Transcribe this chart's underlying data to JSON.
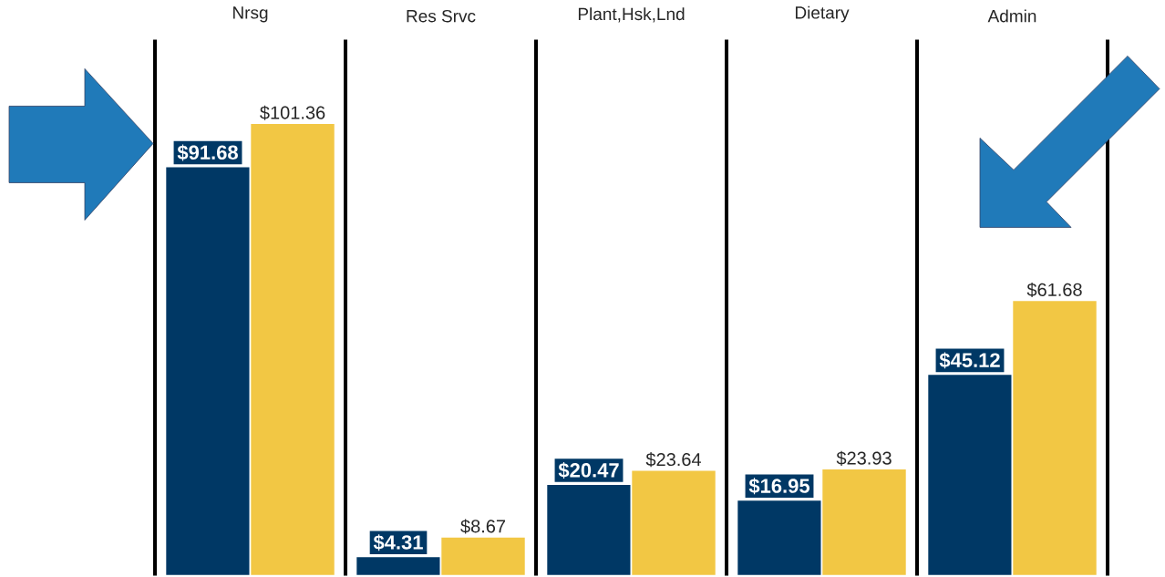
{
  "chart_data": {
    "type": "bar",
    "categories": [
      "Nrsg",
      "Res Srvc",
      "Plant,Hsk,Lnd",
      "Dietary",
      "Admin"
    ],
    "grid": "x",
    "series": [
      {
        "color": "#003865",
        "values": [
          91.68,
          4.31,
          20.47,
          16.95,
          45.12
        ],
        "value_labels": [
          "$91.68",
          "$4.31",
          "$20.47",
          "$16.95",
          "$45.12"
        ]
      },
      {
        "color": "#f2c744",
        "values": [
          101.36,
          8.67,
          23.64,
          23.93,
          61.68
        ],
        "value_labels": [
          "$101.36",
          "$8.67",
          "$23.64",
          "$23.93",
          "$61.68"
        ]
      }
    ]
  }
}
